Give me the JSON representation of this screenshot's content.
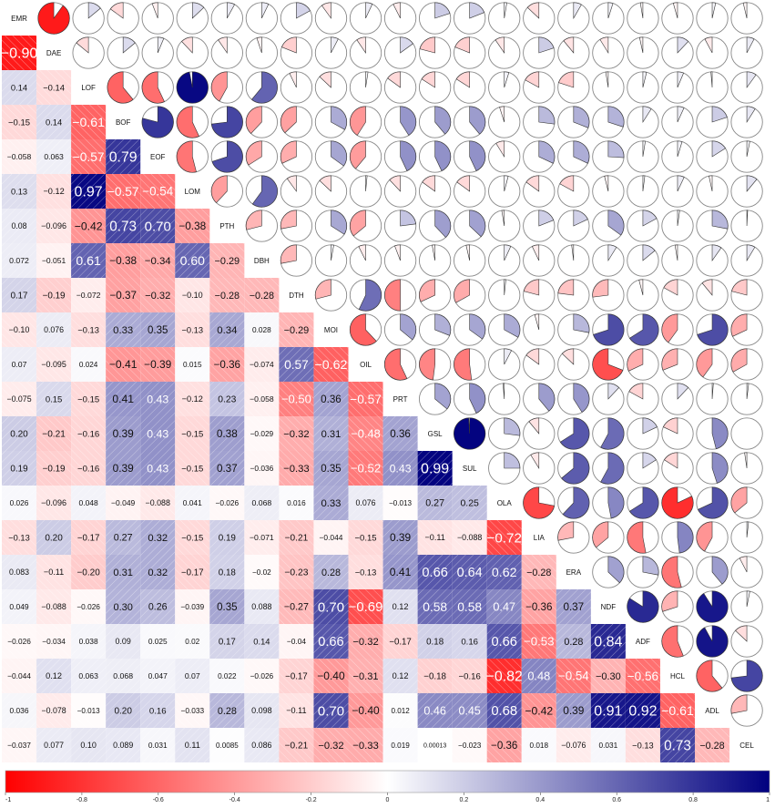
{
  "chart_data": {
    "type": "heatmap",
    "title": "",
    "variables": [
      "EMR",
      "DAE",
      "LOF",
      "BOF",
      "EOF",
      "LOM",
      "PTH",
      "DBH",
      "DTH",
      "MOI",
      "OIL",
      "PRT",
      "GSL",
      "SUL",
      "OLA",
      "LIA",
      "ERA",
      "NDF",
      "ADF",
      "HCL",
      "ADL",
      "CEL"
    ],
    "lower_labels": [
      [],
      [
        "−0.90"
      ],
      [
        "0.14",
        "−0.14"
      ],
      [
        "−0.15",
        "0.14",
        "−0.61"
      ],
      [
        "−0.058",
        "0.063",
        "−0.57",
        "0.79"
      ],
      [
        "0.13",
        "−0.12",
        "0.97",
        "−0.57",
        "−0.54"
      ],
      [
        "0.08",
        "−0.096",
        "−0.42",
        "0.73",
        "0.70",
        "−0.38"
      ],
      [
        "0.072",
        "−0.051",
        "0.61",
        "−0.38",
        "−0.34",
        "0.60",
        "−0.29"
      ],
      [
        "0.17",
        "−0.19",
        "−0.072",
        "−0.37",
        "−0.32",
        "−0.10",
        "−0.28",
        "−0.28"
      ],
      [
        "−0.10",
        "0.076",
        "−0.13",
        "0.33",
        "0.35",
        "−0.13",
        "0.34",
        "0.028",
        "−0.29"
      ],
      [
        "0.07",
        "−0.095",
        "0.024",
        "−0.41",
        "−0.39",
        "0.015",
        "−0.36",
        "−0.074",
        "0.57",
        "−0.62"
      ],
      [
        "−0.075",
        "0.15",
        "−0.15",
        "0.41",
        "0.43",
        "−0.12",
        "0.23",
        "−0.058",
        "−0.50",
        "0.36",
        "−0.57"
      ],
      [
        "0.20",
        "−0.21",
        "−0.16",
        "0.39",
        "0.43",
        "−0.15",
        "0.38",
        "−0.029",
        "−0.32",
        "0.31",
        "−0.48",
        "0.36"
      ],
      [
        "0.19",
        "−0.19",
        "−0.16",
        "0.39",
        "0.43",
        "−0.15",
        "0.37",
        "−0.036",
        "−0.33",
        "0.35",
        "−0.52",
        "0.43",
        "0.99"
      ],
      [
        "0.026",
        "−0.096",
        "0.048",
        "−0.049",
        "−0.088",
        "0.041",
        "−0.026",
        "0.068",
        "0.016",
        "0.33",
        "0.076",
        "−0.013",
        "0.27",
        "0.25"
      ],
      [
        "−0.13",
        "0.20",
        "−0.17",
        "0.27",
        "0.32",
        "−0.15",
        "0.19",
        "−0.071",
        "−0.21",
        "−0.044",
        "−0.15",
        "0.39",
        "−0.11",
        "−0.088",
        "−0.72"
      ],
      [
        "0.083",
        "−0.11",
        "−0.20",
        "0.31",
        "0.32",
        "−0.17",
        "0.18",
        "−0.02",
        "−0.23",
        "0.28",
        "−0.13",
        "0.41",
        "0.66",
        "0.64",
        "0.62",
        "−0.28"
      ],
      [
        "0.049",
        "−0.088",
        "−0.026",
        "0.30",
        "0.26",
        "−0.039",
        "0.35",
        "0.088",
        "−0.27",
        "0.70",
        "−0.69",
        "0.12",
        "0.58",
        "0.58",
        "0.47",
        "−0.36",
        "0.37"
      ],
      [
        "−0.026",
        "−0.034",
        "0.038",
        "0.09",
        "0.025",
        "0.02",
        "0.17",
        "0.14",
        "−0.04",
        "0.66",
        "−0.32",
        "−0.17",
        "0.18",
        "0.16",
        "0.66",
        "−0.53",
        "0.28",
        "0.84"
      ],
      [
        "−0.044",
        "0.12",
        "0.063",
        "0.068",
        "0.047",
        "0.07",
        "0.022",
        "−0.026",
        "−0.17",
        "−0.40",
        "−0.31",
        "0.12",
        "−0.18",
        "−0.16",
        "−0.82",
        "0.48",
        "−0.54",
        "−0.30",
        "−0.56"
      ],
      [
        "0.036",
        "−0.078",
        "−0.013",
        "0.20",
        "0.16",
        "−0.033",
        "0.28",
        "0.098",
        "−0.11",
        "0.70",
        "−0.40",
        "0.012",
        "0.46",
        "0.45",
        "0.68",
        "−0.42",
        "0.39",
        "0.91",
        "0.92",
        "−0.61"
      ],
      [
        "−0.037",
        "0.077",
        "0.10",
        "0.089",
        "0.031",
        "0.11",
        "0.0085",
        "0.086",
        "−0.21",
        "−0.32",
        "−0.33",
        "0.019",
        "0.00013",
        "−0.023",
        "−0.36",
        "0.018",
        "−0.076",
        "0.031",
        "−0.13",
        "0.73",
        "−0.28"
      ]
    ],
    "colorbar_ticks": [
      "-1",
      "-0.8",
      "-0.6",
      "-0.4",
      "-0.2",
      "0",
      "0.2",
      "0.4",
      "0.6",
      "0.8",
      "1"
    ],
    "colorbar_range": [
      -1,
      1
    ],
    "colorscale": {
      "neg": "#ff0000",
      "mid": "#ffffff",
      "pos": "#00007f"
    },
    "upper_style": "pie",
    "lower_style": "shade-with-number"
  }
}
